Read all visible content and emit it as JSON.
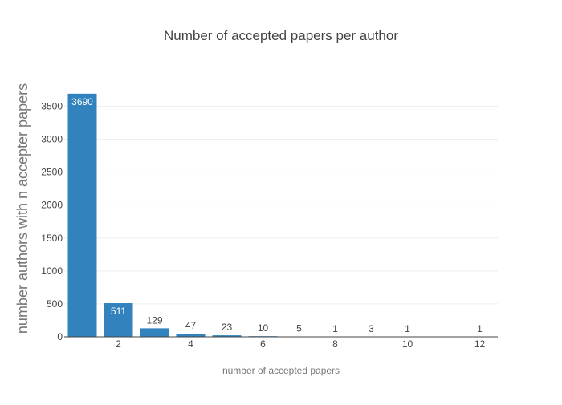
{
  "chart_data": {
    "type": "bar",
    "title": "Number of accepted papers per author",
    "xlabel": "number of accepted papers",
    "ylabel": "number authors with n accepter papers",
    "x": [
      1,
      2,
      3,
      4,
      5,
      6,
      7,
      8,
      9,
      10,
      12
    ],
    "values": [
      3690,
      511,
      129,
      47,
      23,
      10,
      5,
      1,
      3,
      1,
      1
    ],
    "xlim": [
      0.5,
      12.5
    ],
    "ylim": [
      0,
      3700
    ],
    "x_ticks": [
      2,
      4,
      6,
      8,
      10,
      12
    ],
    "y_ticks": [
      0,
      500,
      1000,
      1500,
      2000,
      2500,
      3000,
      3500
    ],
    "grid": true,
    "bar_color": "#3182bd"
  }
}
